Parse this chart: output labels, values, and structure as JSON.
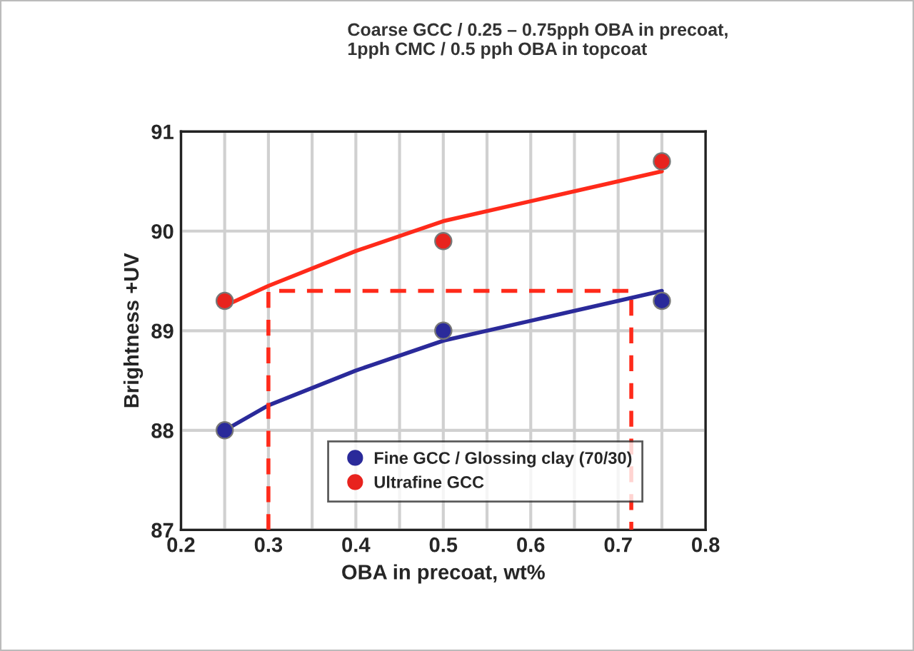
{
  "chart_data": {
    "type": "scatter",
    "title": "Coarse GCC / 0.25 – 0.75pph OBA in precoat,\n1pph CMC / 0.5 pph OBA in topcoat",
    "xlabel": "OBA in precoat, wt%",
    "ylabel": "Brightness +UV",
    "xlim": [
      0.2,
      0.8
    ],
    "ylim": [
      87,
      91
    ],
    "xticks": [
      0.2,
      0.3,
      0.4,
      0.5,
      0.6,
      0.7,
      0.8,
      {
        "value": 0.25,
        "label": null
      },
      {
        "value": 0.35,
        "label": null
      },
      {
        "value": 0.45,
        "label": null
      },
      {
        "value": 0.55,
        "label": null
      },
      {
        "value": 0.65,
        "label": null
      },
      {
        "value": 0.75,
        "label": null
      }
    ],
    "yticks": [
      87,
      88,
      89,
      90,
      91
    ],
    "grid": true,
    "legend": "bottom",
    "series": [
      {
        "name": "Fine GCC / Glossing clay (70/30)",
        "color": "#2a2a9a",
        "marker": "circle",
        "x": [
          0.25,
          0.5,
          0.75
        ],
        "values": [
          88.0,
          89.0,
          89.3
        ]
      },
      {
        "name": "Ultrafine GCC",
        "color": "#e8231e",
        "marker": "circle",
        "x": [
          0.25,
          0.5,
          0.75
        ],
        "values": [
          89.3,
          89.9,
          90.7
        ]
      },
      {
        "type": "line",
        "color": "#2a2a9a",
        "marker": "none",
        "x": [
          0.25,
          0.3,
          0.4,
          0.5,
          0.6,
          0.7,
          0.75
        ],
        "values": [
          88.0,
          88.25,
          88.6,
          88.9,
          89.1,
          89.3,
          89.4
        ]
      },
      {
        "type": "line",
        "color": "#ff2a1a",
        "marker": "none",
        "x": [
          0.25,
          0.3,
          0.4,
          0.5,
          0.6,
          0.7,
          0.75
        ],
        "values": [
          89.25,
          89.45,
          89.8,
          90.1,
          90.3,
          90.5,
          90.6
        ]
      },
      {
        "type": "line",
        "color": "#ff2a1a",
        "line_style": "dashed",
        "marker": "none",
        "x": [
          0.3,
          0.3,
          0.715,
          0.715
        ],
        "values": [
          87,
          89.4,
          89.4,
          87
        ]
      }
    ]
  }
}
